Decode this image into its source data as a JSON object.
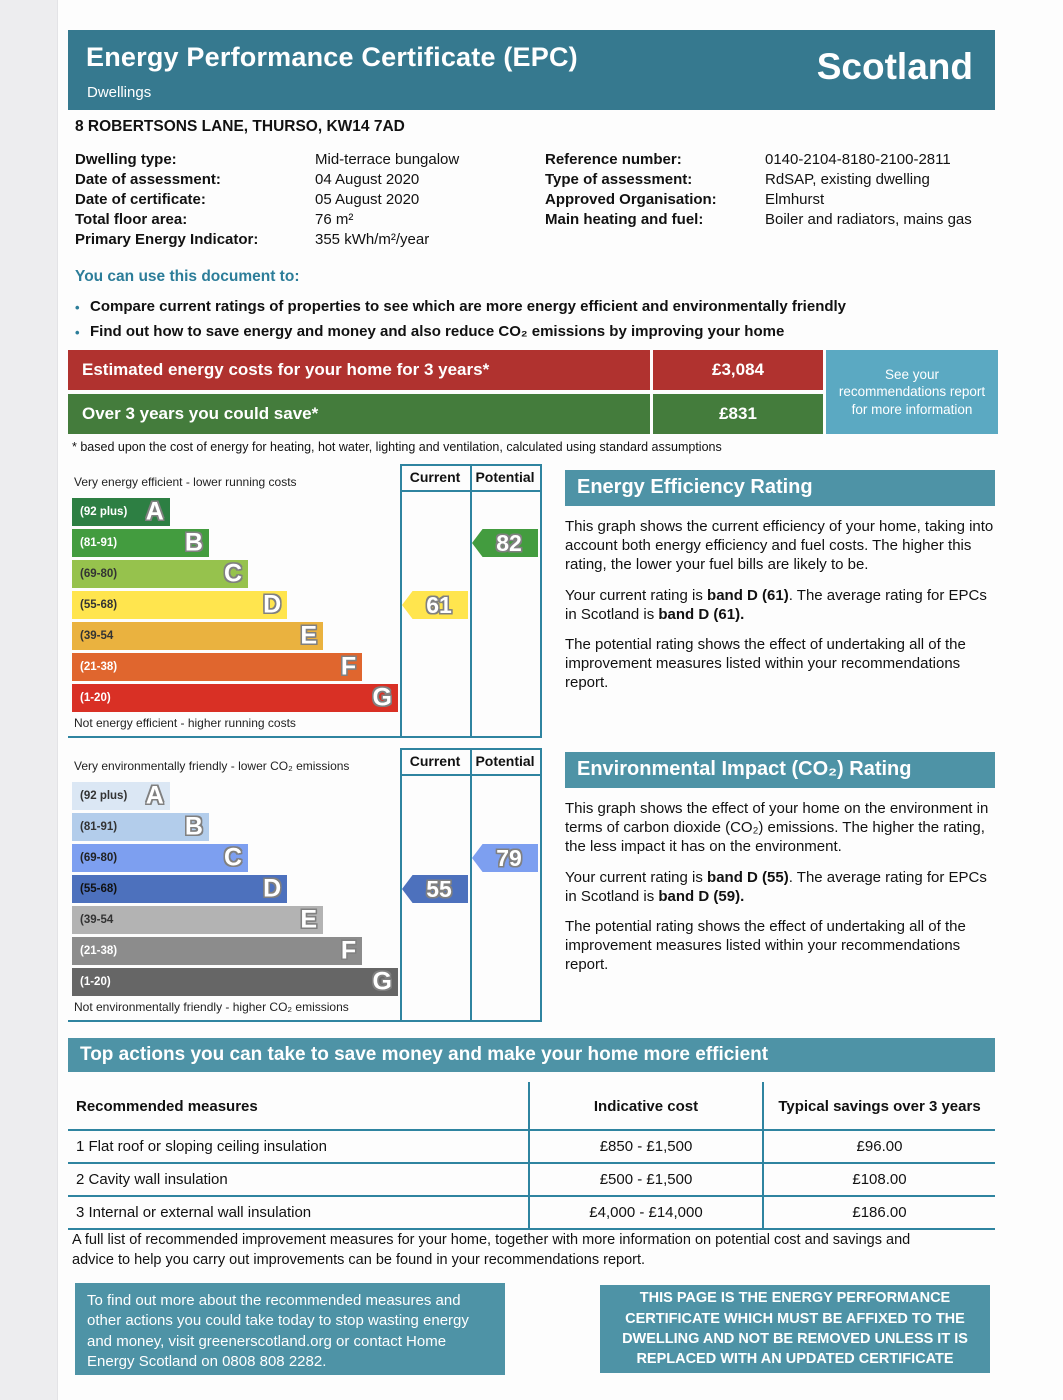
{
  "header": {
    "title": "Energy Performance Certificate (EPC)",
    "subtitle": "Dwellings",
    "region": "Scotland"
  },
  "address": "8 ROBERTSONS LANE, THURSO, KW14 7AD",
  "details": {
    "left": [
      {
        "label": "Dwelling type:",
        "value": "Mid-terrace bungalow"
      },
      {
        "label": "Date of assessment:",
        "value": "04 August 2020"
      },
      {
        "label": "Date of certificate:",
        "value": "05 August 2020"
      },
      {
        "label": "Total floor area:",
        "value": "76 m²"
      },
      {
        "label": "Primary Energy Indicator:",
        "value": "355 kWh/m²/year"
      }
    ],
    "right": [
      {
        "label": "Reference number:",
        "value": "0140-2104-8180-2100-2811"
      },
      {
        "label": "Type of assessment:",
        "value": "RdSAP, existing dwelling"
      },
      {
        "label": "Approved Organisation:",
        "value": "Elmhurst"
      },
      {
        "label": "Main heating and fuel:",
        "value": "Boiler and radiators, mains gas"
      }
    ]
  },
  "usage": {
    "heading": "You can use this document to:",
    "bullets": [
      "Compare current ratings of properties to see which are more energy efficient and environmentally friendly",
      "Find out how to save energy and money and also reduce CO₂ emissions by improving your home"
    ]
  },
  "costs": {
    "rows": [
      {
        "label": "Estimated energy costs for your home for 3 years*",
        "value": "£3,084"
      },
      {
        "label": "Over 3 years you could save*",
        "value": "£831"
      }
    ],
    "side_note": "See your recommendations report for more information",
    "footnote": "* based upon the cost of energy for heating, hot water, lighting and ventilation, calculated using standard assumptions"
  },
  "colors": {
    "header_teal": "#36798f",
    "section_teal": "#4e93a6",
    "border_teal": "#2f84a0",
    "cost_red": "#b0322f",
    "cost_green": "#447c3c",
    "info_blue": "#5ba9c2"
  },
  "chart_data": [
    {
      "type": "rating-bands",
      "title": "Energy Efficiency Rating",
      "top_label": "Very energy efficient - lower running costs",
      "bottom_label": "Not energy efficient - higher running costs",
      "columns": [
        "Current",
        "Potential"
      ],
      "bands": [
        {
          "letter": "A",
          "range": "(92 plus)",
          "color": "#2d7f43",
          "width_pct": 30,
          "label_color": "#ffffff"
        },
        {
          "letter": "B",
          "range": "(81-91)",
          "color": "#439c3f",
          "width_pct": 42,
          "label_color": "#ffffff"
        },
        {
          "letter": "C",
          "range": "(69-80)",
          "color": "#96c24d",
          "width_pct": 54,
          "label_color": "#333333"
        },
        {
          "letter": "D",
          "range": "(55-68)",
          "color": "#ffe54e",
          "width_pct": 66,
          "label_color": "#333333"
        },
        {
          "letter": "E",
          "range": "(39-54",
          "color": "#eab23f",
          "width_pct": 77,
          "label_color": "#333333"
        },
        {
          "letter": "F",
          "range": "(21-38)",
          "color": "#e0662e",
          "width_pct": 89,
          "label_color": "#ffffff"
        },
        {
          "letter": "G",
          "range": "(1-20)",
          "color": "#d93025",
          "width_pct": 100,
          "label_color": "#ffffff"
        }
      ],
      "current": {
        "value": 61,
        "band": "D",
        "row": 3,
        "color": "#ffe54e"
      },
      "potential": {
        "value": 82,
        "band": "B",
        "row": 1,
        "color": "#439c3f"
      }
    },
    {
      "type": "rating-bands",
      "title": "Environmental Impact (CO₂) Rating",
      "top_label": "Very environmentally friendly - lower CO₂ emissions",
      "bottom_label": "Not environmentally friendly - higher CO₂ emissions",
      "columns": [
        "Current",
        "Potential"
      ],
      "bands": [
        {
          "letter": "A",
          "range": "(92 plus)",
          "color": "#dbe7f4",
          "width_pct": 30,
          "label_color": "#333333"
        },
        {
          "letter": "B",
          "range": "(81-91)",
          "color": "#b3cdeb",
          "width_pct": 42,
          "label_color": "#333333"
        },
        {
          "letter": "C",
          "range": "(69-80)",
          "color": "#7d9ff0",
          "width_pct": 54,
          "label_color": "#222222"
        },
        {
          "letter": "D",
          "range": "(55-68)",
          "color": "#4d71bd",
          "width_pct": 66,
          "label_color": "#111111"
        },
        {
          "letter": "E",
          "range": "(39-54",
          "color": "#b3b3b3",
          "width_pct": 77,
          "label_color": "#333333"
        },
        {
          "letter": "F",
          "range": "(21-38)",
          "color": "#8c8c8c",
          "width_pct": 89,
          "label_color": "#ffffff"
        },
        {
          "letter": "G",
          "range": "(1-20)",
          "color": "#666666",
          "width_pct": 100,
          "label_color": "#ffffff"
        }
      ],
      "current": {
        "value": 55,
        "band": "D",
        "row": 3,
        "color": "#4d71bd"
      },
      "potential": {
        "value": 79,
        "band": "C",
        "row": 2,
        "color": "#7d9ff0"
      }
    }
  ],
  "panels": [
    {
      "title": "Energy Efficiency Rating",
      "paragraphs": [
        {
          "segments": [
            {
              "t": "This graph shows the current efficiency of your home, taking into account both energy efficiency and fuel costs. The higher this rating, the lower your fuel bills are likely to be."
            }
          ]
        },
        {
          "segments": [
            {
              "t": "Your current rating is "
            },
            {
              "t": "band D (61)",
              "b": true
            },
            {
              "t": ". The average rating for EPCs in Scotland is "
            },
            {
              "t": "band D (61).",
              "b": true
            }
          ]
        },
        {
          "segments": [
            {
              "t": "The potential rating shows the effect of undertaking all of the improvement measures listed within your recommendations report."
            }
          ]
        }
      ]
    },
    {
      "title": "Environmental Impact (CO₂) Rating",
      "paragraphs": [
        {
          "segments": [
            {
              "t": "This graph shows the effect of your home on the environment in terms of carbon dioxide (CO₂) emissions. The higher the rating, the less impact it has on the environment."
            }
          ]
        },
        {
          "segments": [
            {
              "t": "Your current rating is "
            },
            {
              "t": "band D (55)",
              "b": true
            },
            {
              "t": ". The average rating for EPCs in Scotland is "
            },
            {
              "t": "band D (59).",
              "b": true
            }
          ]
        },
        {
          "segments": [
            {
              "t": "The potential rating shows the effect of undertaking all of the improvement measures listed within your recommendations report."
            }
          ]
        }
      ]
    }
  ],
  "top_actions": {
    "title": "Top actions you can take to save money and make your home more efficient",
    "headers": [
      "Recommended measures",
      "Indicative cost",
      "Typical savings over 3 years"
    ],
    "rows": [
      [
        "1 Flat roof or sloping ceiling insulation",
        "£850 - £1,500",
        "£96.00"
      ],
      [
        "2 Cavity wall insulation",
        "£500 - £1,500",
        "£108.00"
      ],
      [
        "3 Internal or external wall insulation",
        "£4,000 - £14,000",
        "£186.00"
      ]
    ],
    "note": "A full list of recommended improvement measures for your home, together with more information on potential cost and savings and advice to help you carry out improvements can be found in your recommendations report."
  },
  "footer": {
    "left": "To find out more about the recommended measures and other actions you could take today to stop wasting energy and money, visit greenerscotland.org or contact Home Energy Scotland on 0808 808 2282.",
    "right": "THIS PAGE IS THE ENERGY PERFORMANCE CERTIFICATE WHICH MUST BE AFFIXED TO THE DWELLING AND NOT BE REMOVED UNLESS IT IS REPLACED WITH AN UPDATED CERTIFICATE"
  }
}
